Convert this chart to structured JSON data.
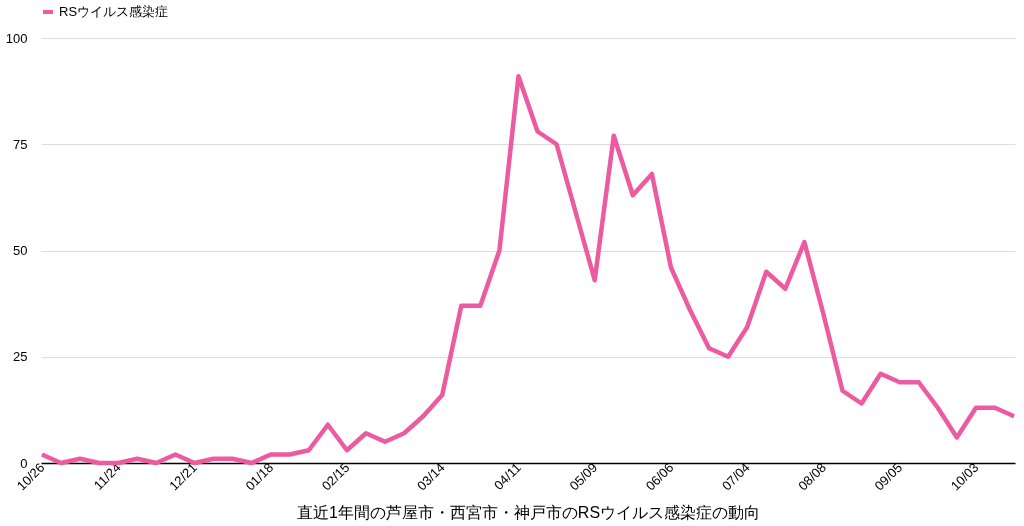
{
  "chart_data": {
    "type": "line",
    "xlabel": "直近1年間の芦屋市・西宮市・神戸市のRSウイルス感染症の動向",
    "categories": [
      "10/26",
      null,
      null,
      null,
      "11/24",
      null,
      null,
      null,
      "12/21",
      null,
      null,
      null,
      "01/18",
      null,
      null,
      null,
      "02/15",
      null,
      null,
      null,
      null,
      "03/14",
      null,
      null,
      null,
      "04/11",
      null,
      null,
      null,
      "05/09",
      null,
      null,
      null,
      "06/06",
      null,
      null,
      null,
      "07/04",
      null,
      null,
      null,
      "08/08",
      null,
      null,
      null,
      "09/05",
      null,
      null,
      null,
      "10/03",
      null,
      null
    ],
    "series": [
      {
        "name": "RSウイルス感染症",
        "color": "#ec5aa0",
        "values": [
          2,
          0,
          1,
          0,
          0,
          1,
          0,
          2,
          0,
          1,
          1,
          0,
          2,
          2,
          3,
          9,
          3,
          7,
          5,
          7,
          11,
          16,
          37,
          37,
          50,
          91,
          78,
          75,
          59,
          43,
          77,
          63,
          68,
          46,
          36,
          27,
          25,
          32,
          45,
          41,
          52,
          35,
          17,
          14,
          21,
          19,
          19,
          13,
          6,
          13,
          13,
          11
        ]
      }
    ],
    "ylim": [
      0,
      100
    ],
    "yticks": [
      0,
      25,
      50,
      75,
      100
    ],
    "grid": "y",
    "legend": "top",
    "marker": "none",
    "line_style": "solid"
  }
}
